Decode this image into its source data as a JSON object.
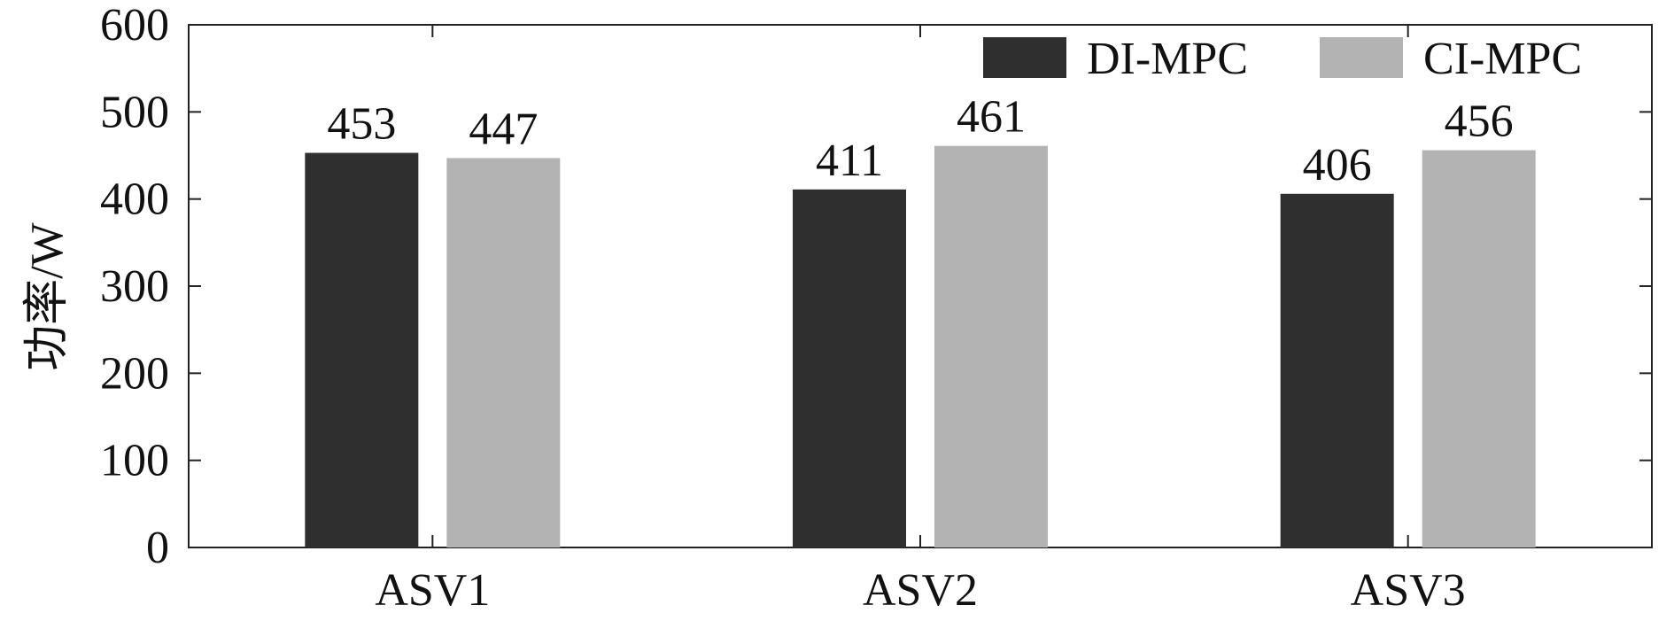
{
  "chart_data": {
    "type": "bar",
    "categories": [
      "ASV1",
      "ASV2",
      "ASV3"
    ],
    "series": [
      {
        "name": "DI-MPC",
        "values": [
          453,
          411,
          406
        ],
        "color": "#2f2f2f"
      },
      {
        "name": "CI-MPC",
        "values": [
          447,
          461,
          456
        ],
        "color": "#b3b3b3"
      }
    ],
    "ylabel": "功率/W",
    "xlabel": "",
    "ylim": [
      0,
      600
    ],
    "yticks": [
      0,
      100,
      200,
      300,
      400,
      500,
      600
    ],
    "legend_position": "top-right",
    "grid": false,
    "data_labels": true
  }
}
